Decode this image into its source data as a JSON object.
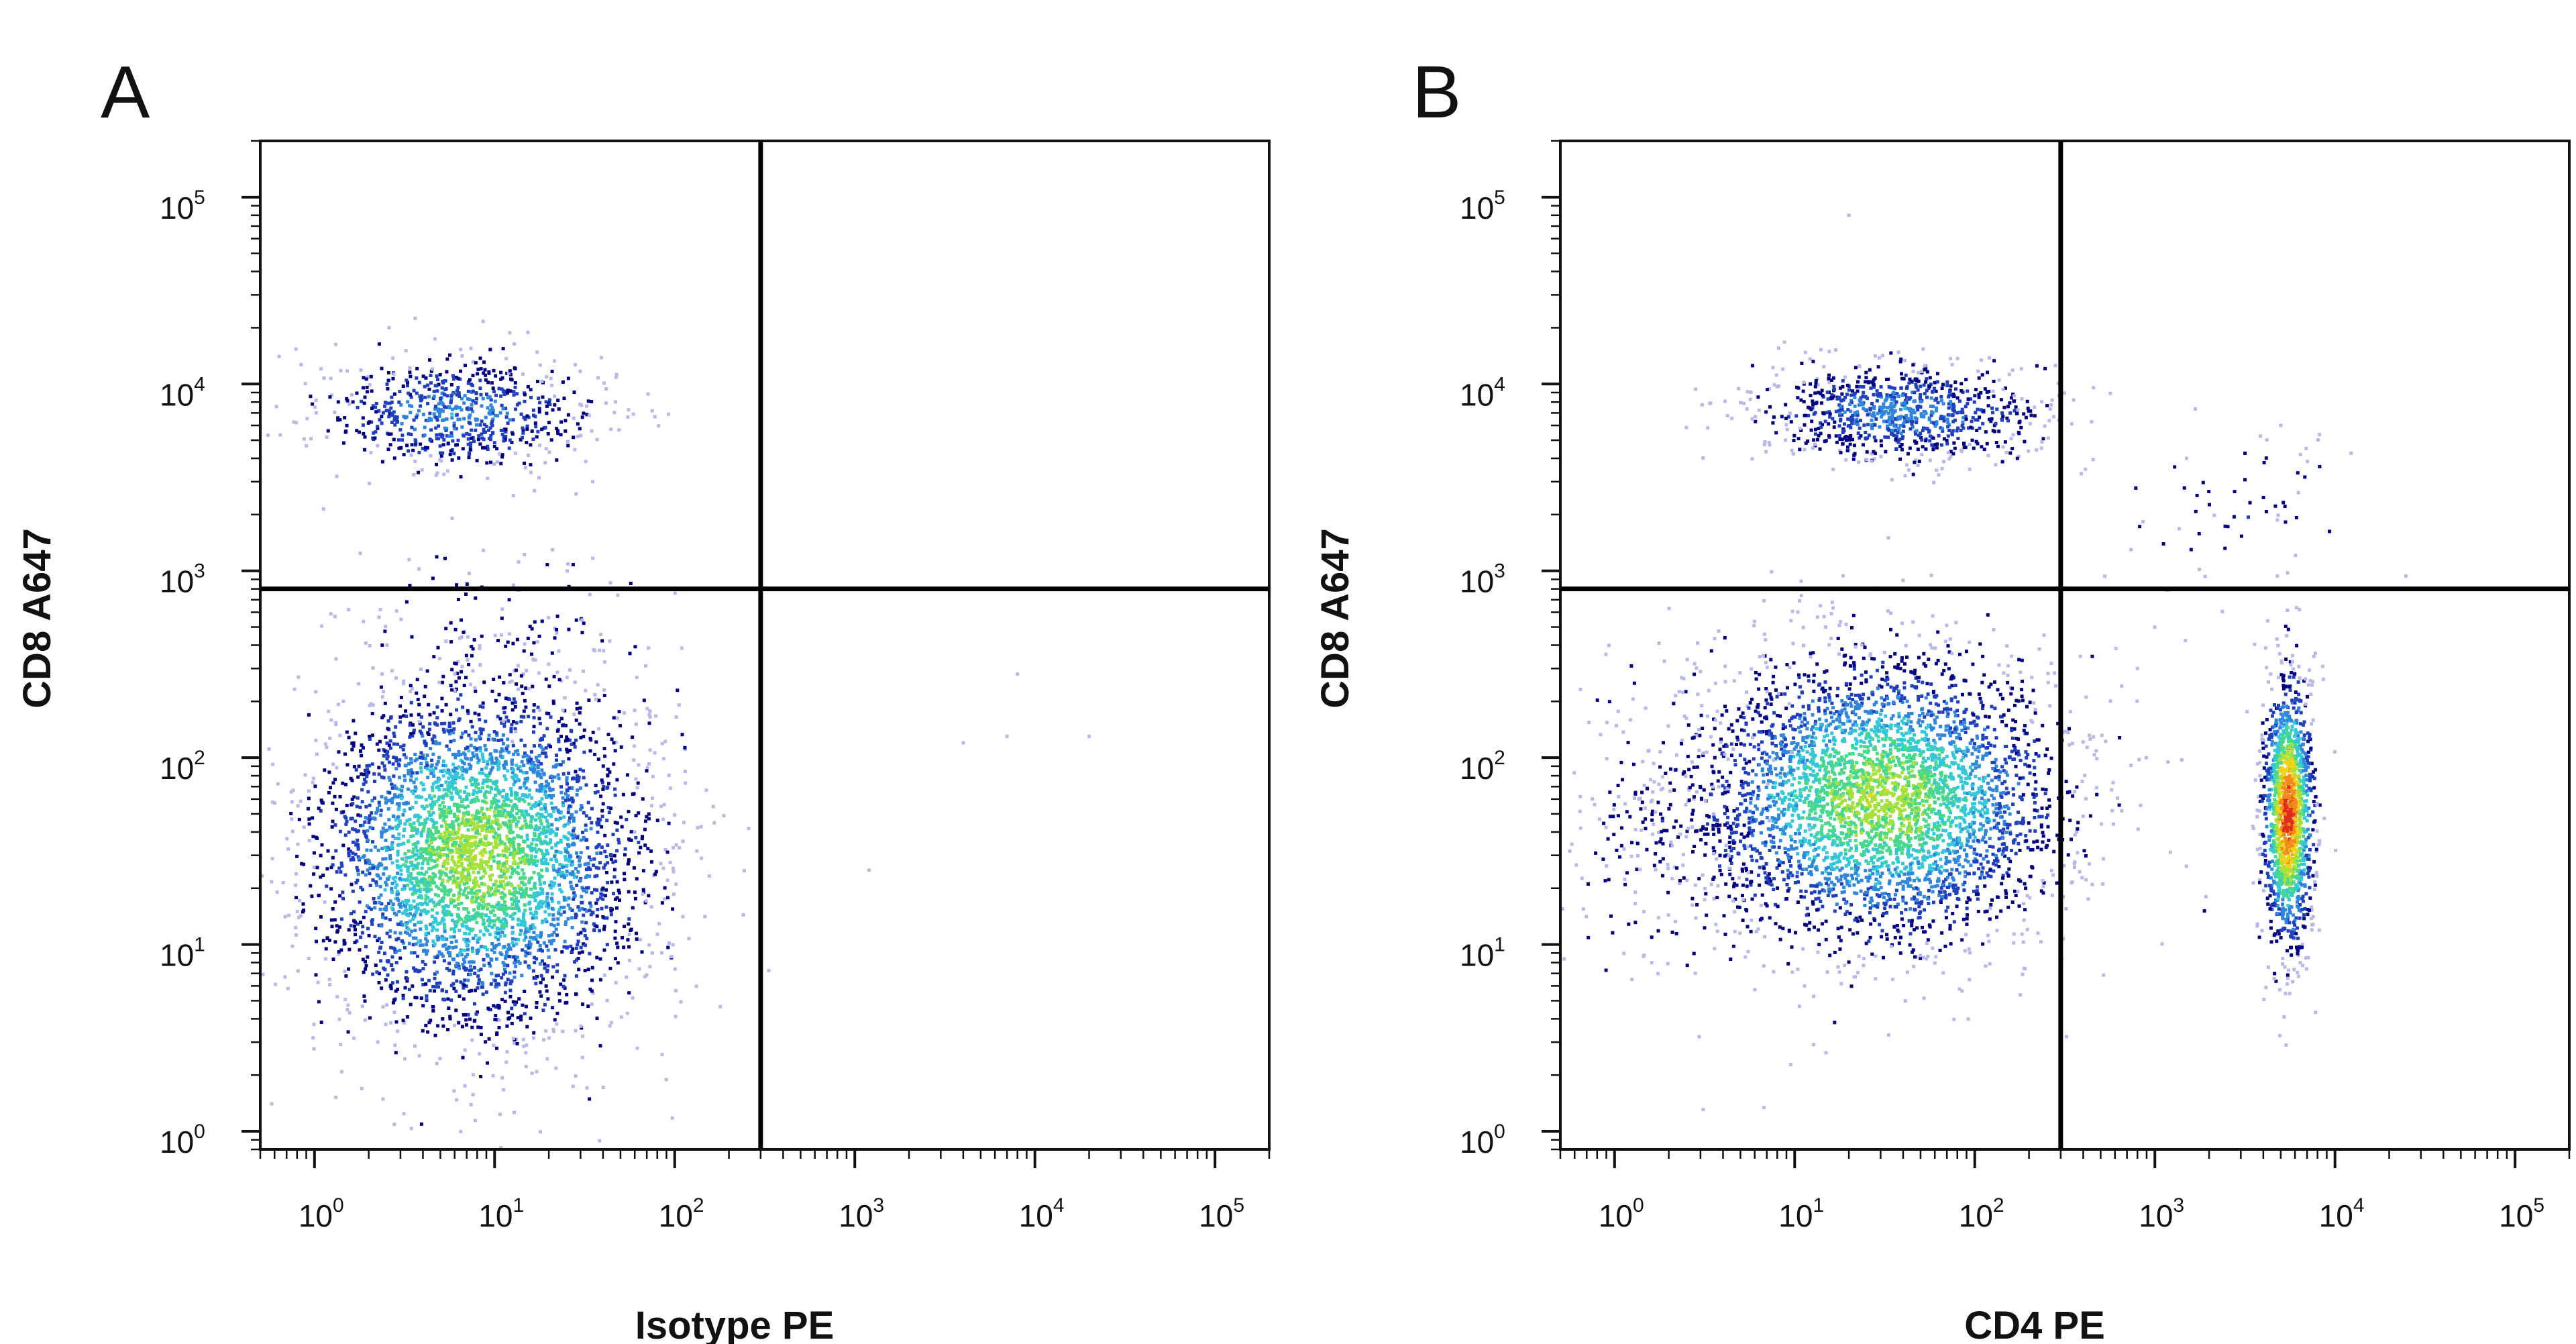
{
  "figure": {
    "background": "#ffffff",
    "density_colors": [
      "#b9b9e8",
      "#000080",
      "#1f3fbf",
      "#2f86dc",
      "#33c7d8",
      "#48d88c",
      "#a6e03a",
      "#f1d21c",
      "#f28a1c",
      "#e02a1a"
    ]
  },
  "chart_data": [
    {
      "type": "scatter",
      "panel_label": "A",
      "title": "",
      "xlabel": "Isotype PE",
      "ylabel": "CD8 A647",
      "x_scale": "log",
      "y_scale": "log",
      "xlim": [
        0.5,
        200000
      ],
      "ylim": [
        0.8,
        200000
      ],
      "x_ticks": [
        {
          "base": "10",
          "exp": "0",
          "value": 1
        },
        {
          "base": "10",
          "exp": "1",
          "value": 10
        },
        {
          "base": "10",
          "exp": "2",
          "value": 100
        },
        {
          "base": "10",
          "exp": "3",
          "value": 1000
        },
        {
          "base": "10",
          "exp": "4",
          "value": 10000
        },
        {
          "base": "10",
          "exp": "5",
          "value": 100000
        }
      ],
      "y_ticks": [
        {
          "base": "10",
          "exp": "0",
          "value": 1
        },
        {
          "base": "10",
          "exp": "1",
          "value": 10
        },
        {
          "base": "10",
          "exp": "2",
          "value": 100
        },
        {
          "base": "10",
          "exp": "3",
          "value": 1000
        },
        {
          "base": "10",
          "exp": "4",
          "value": 10000
        },
        {
          "base": "10",
          "exp": "5",
          "value": 100000
        }
      ],
      "quadrant_gates": {
        "x": 300,
        "y": 800
      },
      "populations": [
        {
          "center": [
            8,
            30
          ],
          "spread": [
            0.45,
            0.45
          ],
          "count": 4200,
          "peak_density": 6
        },
        {
          "center": [
            6,
            7000
          ],
          "spread": [
            0.38,
            0.15
          ],
          "count": 700,
          "peak_density": 3
        },
        {
          "center": [
            10,
            500
          ],
          "spread": [
            0.4,
            0.25
          ],
          "count": 120,
          "peak_density": 1
        }
      ],
      "sparse_events": [
        [
          35,
          3000
        ],
        [
          60,
          40
        ],
        [
          300,
          40
        ],
        [
          1200,
          25
        ],
        [
          4000,
          120
        ],
        [
          7000,
          130
        ],
        [
          8000,
          280
        ],
        [
          20000,
          130
        ]
      ]
    },
    {
      "type": "scatter",
      "panel_label": "B",
      "title": "",
      "xlabel": "CD4 PE",
      "ylabel": "CD8 A647",
      "x_scale": "log",
      "y_scale": "log",
      "xlim": [
        0.5,
        200000
      ],
      "ylim": [
        0.8,
        200000
      ],
      "x_ticks": [
        {
          "base": "10",
          "exp": "0",
          "value": 1
        },
        {
          "base": "10",
          "exp": "1",
          "value": 10
        },
        {
          "base": "10",
          "exp": "2",
          "value": 100
        },
        {
          "base": "10",
          "exp": "3",
          "value": 1000
        },
        {
          "base": "10",
          "exp": "4",
          "value": 10000
        },
        {
          "base": "10",
          "exp": "5",
          "value": 100000
        }
      ],
      "y_ticks": [
        {
          "base": "10",
          "exp": "0",
          "value": 1
        },
        {
          "base": "10",
          "exp": "1",
          "value": 10
        },
        {
          "base": "10",
          "exp": "2",
          "value": 100
        },
        {
          "base": "10",
          "exp": "3",
          "value": 1000
        },
        {
          "base": "10",
          "exp": "4",
          "value": 10000
        },
        {
          "base": "10",
          "exp": "5",
          "value": 100000
        }
      ],
      "quadrant_gates": {
        "x": 300,
        "y": 800
      },
      "populations": [
        {
          "center": [
            30,
            60
          ],
          "spread": [
            0.5,
            0.38
          ],
          "count": 4000,
          "peak_density": 6
        },
        {
          "center": [
            5500,
            50
          ],
          "spread": [
            0.07,
            0.35
          ],
          "count": 1500,
          "peak_density": 9
        },
        {
          "center": [
            40,
            7000
          ],
          "spread": [
            0.4,
            0.13
          ],
          "count": 900,
          "peak_density": 3
        },
        {
          "center": [
            2,
            40
          ],
          "spread": [
            0.3,
            0.45
          ],
          "count": 250,
          "peak_density": 1
        },
        {
          "center": [
            3000,
            2000
          ],
          "spread": [
            0.3,
            0.2
          ],
          "count": 60,
          "peak_density": 1
        }
      ],
      "sparse_events": [
        [
          20,
          80000
        ],
        [
          5000,
          6000
        ],
        [
          1500,
          4000
        ],
        [
          800,
          300
        ],
        [
          1000,
          500
        ]
      ]
    }
  ]
}
